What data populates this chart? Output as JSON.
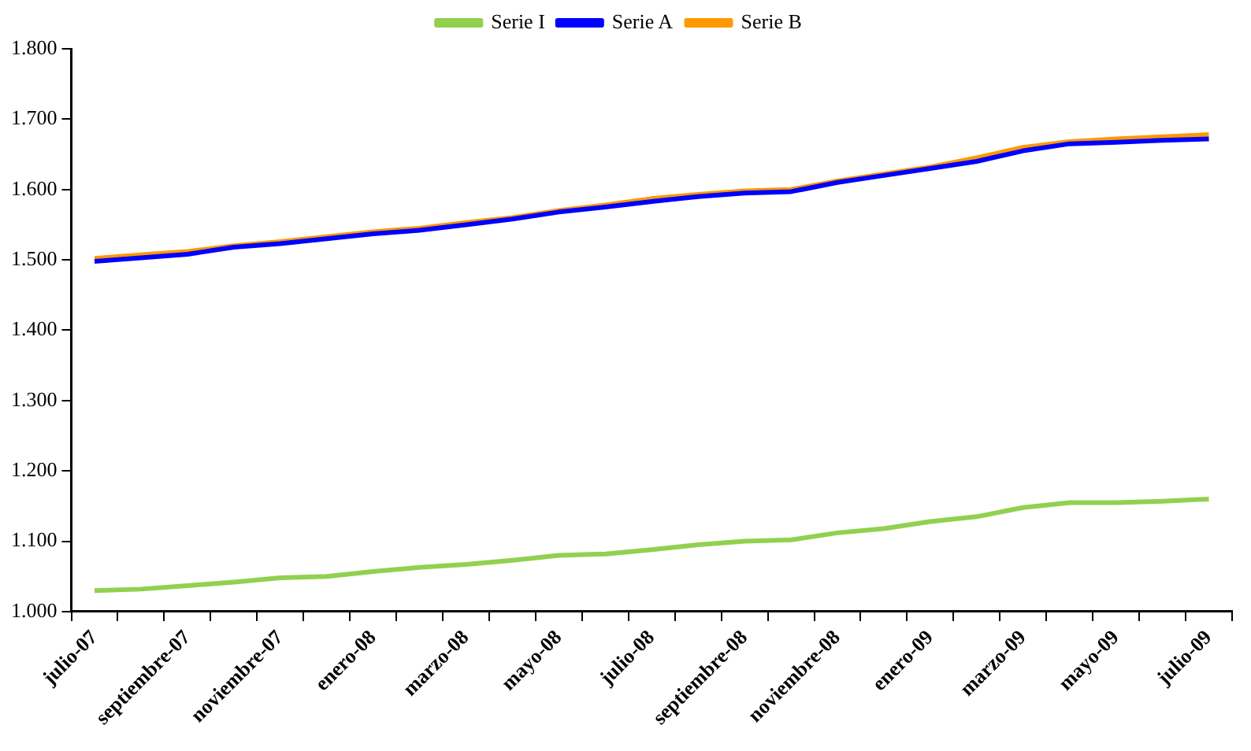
{
  "chart_data": {
    "type": "line",
    "categories": [
      "julio-07",
      null,
      "septiembre-07",
      null,
      "noviembre-07",
      null,
      "enero-08",
      null,
      "marzo-08",
      null,
      "mayo-08",
      null,
      "julio-08",
      null,
      "septiembre-08",
      null,
      "noviembre-08",
      null,
      "enero-09",
      null,
      "marzo-09",
      null,
      "mayo-09",
      null,
      "julio-09"
    ],
    "series": [
      {
        "name": "Serie I",
        "color": "#92d050",
        "values": [
          1030,
          1032,
          1037,
          1042,
          1048,
          1050,
          1057,
          1063,
          1067,
          1073,
          1080,
          1082,
          1088,
          1095,
          1100,
          1102,
          1112,
          1118,
          1128,
          1135,
          1148,
          1155,
          1155,
          1157,
          1160
        ]
      },
      {
        "name": "Serie A",
        "color": "#0000ff",
        "values": [
          1498,
          1503,
          1508,
          1518,
          1523,
          1530,
          1537,
          1542,
          1550,
          1558,
          1568,
          1575,
          1583,
          1590,
          1595,
          1597,
          1610,
          1620,
          1630,
          1640,
          1655,
          1665,
          1667,
          1670,
          1672
        ]
      },
      {
        "name": "Serie B",
        "color": "#ff9900",
        "values": [
          1502,
          1507,
          1512,
          1520,
          1526,
          1533,
          1540,
          1545,
          1553,
          1560,
          1570,
          1578,
          1587,
          1593,
          1598,
          1600,
          1612,
          1622,
          1632,
          1645,
          1660,
          1668,
          1672,
          1675,
          1678
        ]
      }
    ],
    "ylim": [
      1000,
      1800
    ],
    "yticks": [
      {
        "value": 1000,
        "label": "1.000"
      },
      {
        "value": 1100,
        "label": "1.100"
      },
      {
        "value": 1200,
        "label": "1.200"
      },
      {
        "value": 1300,
        "label": "1.300"
      },
      {
        "value": 1400,
        "label": "1.400"
      },
      {
        "value": 1500,
        "label": "1.500"
      },
      {
        "value": 1600,
        "label": "1.600"
      },
      {
        "value": 1700,
        "label": "1.700"
      },
      {
        "value": 1800,
        "label": "1.800"
      }
    ],
    "grid": false,
    "legend": "top",
    "marker": "none",
    "line_style": "solid"
  }
}
